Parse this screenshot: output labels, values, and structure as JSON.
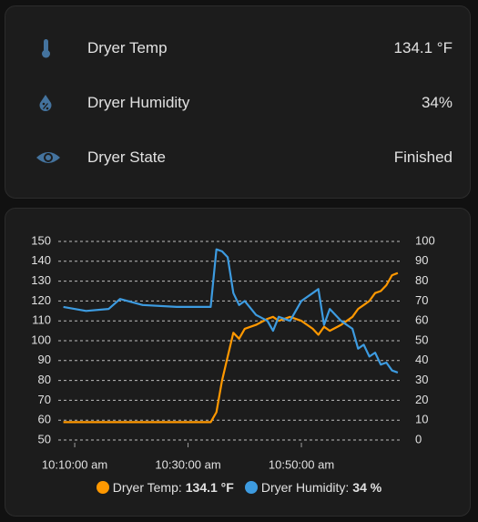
{
  "entities": [
    {
      "name": "Dryer Temp",
      "state": "134.1 °F"
    },
    {
      "name": "Dryer Humidity",
      "state": "34%"
    },
    {
      "name": "Dryer State",
      "state": "Finished"
    }
  ],
  "chart_data": {
    "type": "line",
    "x": [
      "10:08:00 am",
      "10:12:00 am",
      "10:16:00 am",
      "10:18:00 am",
      "10:22:00 am",
      "10:28:00 am",
      "10:34:00 am",
      "10:35:00 am",
      "10:36:00 am",
      "10:37:00 am",
      "10:38:00 am",
      "10:39:00 am",
      "10:40:00 am",
      "10:42:00 am",
      "10:44:00 am",
      "10:45:00 am",
      "10:46:00 am",
      "10:48:00 am",
      "10:50:00 am",
      "10:52:00 am",
      "10:53:00 am",
      "10:54:00 am",
      "10:55:00 am",
      "10:57:00 am",
      "10:59:00 am",
      "11:00:00 am",
      "11:01:00 am",
      "11:02:00 am",
      "11:03:00 am",
      "11:04:00 am",
      "11:05:00 am",
      "11:06:00 am",
      "11:07:00 am"
    ],
    "series": [
      {
        "name": "Dryer Temp",
        "color": "#ff9800",
        "values": [
          59,
          59,
          59,
          59,
          59,
          59,
          59,
          64,
          80,
          92,
          104,
          101,
          106,
          108,
          111,
          112,
          110,
          112,
          110,
          106,
          103,
          107,
          105,
          108,
          112,
          116,
          118,
          120,
          124,
          125,
          128,
          133,
          134.1
        ]
      },
      {
        "name": "Dryer Humidity",
        "color": "#3d9be0",
        "axis": "y2",
        "values": [
          67,
          65,
          66,
          71,
          68,
          67,
          67,
          96,
          95,
          92,
          74,
          68,
          70,
          63,
          60,
          55,
          62,
          60,
          70,
          74,
          76,
          58,
          66,
          60,
          56,
          46,
          48,
          42,
          44,
          38,
          39,
          35,
          34
        ]
      }
    ],
    "legend": [
      {
        "label": "Dryer Temp:",
        "value": "134.1 °F"
      },
      {
        "label": "Dryer Humidity:",
        "value": "34 %"
      }
    ],
    "xlim": [
      "10:07:06 am",
      "11:07:40 am"
    ],
    "xticks": [
      "10:10:00 am",
      "10:30:00 am",
      "10:50:00 am"
    ],
    "ylim": [
      50,
      150
    ],
    "yticks": [
      50,
      60,
      70,
      80,
      90,
      100,
      110,
      120,
      130,
      140,
      150
    ],
    "y2lim": [
      0,
      100
    ],
    "y2ticks": [
      0,
      10,
      20,
      30,
      40,
      50,
      60,
      70,
      80,
      90,
      100
    ],
    "grid": true
  }
}
